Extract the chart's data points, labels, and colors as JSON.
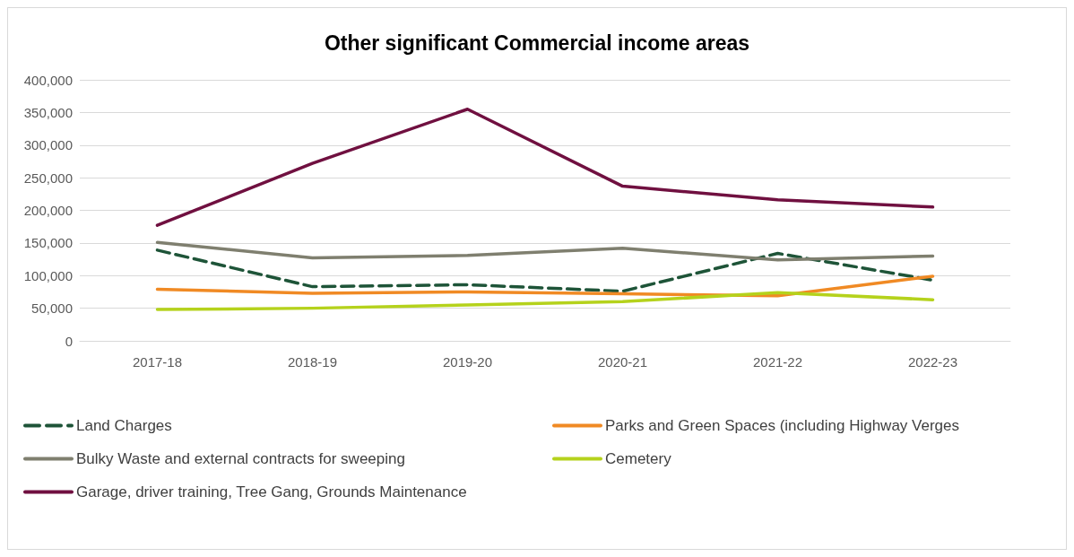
{
  "chart_data": {
    "type": "line",
    "title": "Other significant Commercial income areas",
    "categories": [
      "2017-18",
      "2018-19",
      "2019-20",
      "2020-21",
      "2021-22",
      "2022-23"
    ],
    "series": [
      {
        "name": "Land Charges",
        "color": "#1e5438",
        "line_style": "dashed",
        "values": [
          139000,
          83000,
          86000,
          76000,
          134000,
          93000
        ]
      },
      {
        "name": "Parks and Green Spaces (including Highway Verges",
        "color": "#f08a24",
        "values": [
          79000,
          73000,
          75000,
          72000,
          69000,
          99000
        ]
      },
      {
        "name": "Bulky Waste and external contracts for sweeping",
        "color": "#7f7f6f",
        "values": [
          151000,
          127000,
          131000,
          142000,
          124000,
          130000
        ]
      },
      {
        "name": "Cemetery",
        "color": "#b5d21c",
        "values": [
          48000,
          50000,
          55000,
          60000,
          74000,
          63000
        ]
      },
      {
        "name": "Garage, driver training, Tree Gang, Grounds Maintenance",
        "color": "#701040",
        "values": [
          177000,
          272000,
          355000,
          237000,
          216000,
          205000
        ]
      }
    ],
    "ylim": [
      0,
      400000
    ],
    "yticks": [
      0,
      {
        "value": 50000,
        "label": "50,000"
      },
      {
        "value": 100000,
        "label": "100,000"
      },
      {
        "value": 150000,
        "label": "150,000"
      },
      {
        "value": 200000,
        "label": "200,000"
      },
      {
        "value": 250000,
        "label": "250,000"
      },
      {
        "value": 300000,
        "label": "300,000"
      },
      {
        "value": 350000,
        "label": "350,000"
      },
      {
        "value": 400000,
        "label": "400,000"
      }
    ],
    "grid": "y",
    "legend": "bottom",
    "marker": "none",
    "line_style": "solid"
  }
}
